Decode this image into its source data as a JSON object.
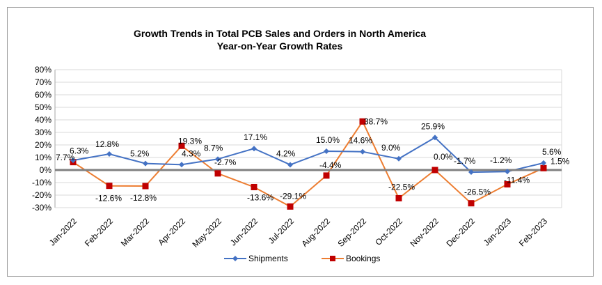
{
  "chart_data": {
    "type": "line",
    "title": "Growth Trends in Total PCB Sales and Orders in North America",
    "subtitle": "Year-on-Year Growth Rates",
    "xlabel": "",
    "ylabel": "",
    "ylim": [
      -30,
      80
    ],
    "yticks": [
      80,
      70,
      60,
      50,
      40,
      30,
      20,
      10,
      0,
      -10,
      -20,
      -30
    ],
    "ytick_labels": [
      "80%",
      "70%",
      "60%",
      "50%",
      "40%",
      "30%",
      "20%",
      "10%",
      "0%",
      "-10%",
      "-20%",
      "-30%"
    ],
    "categories": [
      "Jan-2022",
      "Feb-2022",
      "Mar-2022",
      "Apr-2022",
      "May-2022",
      "Jun-2022",
      "Jul-2022",
      "Aug-2022",
      "Sep-2022",
      "Oct-2022",
      "Nov-2022",
      "Dec-2022",
      "Jan-2023",
      "Feb-2023"
    ],
    "grid": true,
    "legend_position": "bottom",
    "series": [
      {
        "name": "Shipments",
        "color": "#4472c4",
        "marker": "diamond",
        "values": [
          7.7,
          12.8,
          5.2,
          4.3,
          8.7,
          17.1,
          4.2,
          15.0,
          14.6,
          9.0,
          25.9,
          -1.7,
          -1.2,
          5.6
        ],
        "labels": [
          "7.7%",
          "12.8%",
          "5.2%",
          "4.3%",
          "8.7%",
          "17.1%",
          "4.2%",
          "15.0%",
          "14.6%",
          "9.0%",
          "25.9%",
          "-1.7%",
          "-1.2%",
          "5.6%"
        ]
      },
      {
        "name": "Bookings",
        "color": "#ed7d31",
        "marker_color": "#c00000",
        "marker": "square",
        "values": [
          6.3,
          -12.6,
          -12.8,
          19.3,
          -2.7,
          -13.6,
          -29.1,
          -4.4,
          38.7,
          -22.5,
          0.0,
          -26.5,
          -11.4,
          1.5
        ],
        "labels": [
          "6.3%",
          "-12.6%",
          "-12.8%",
          "19.3%",
          "-2.7%",
          "-13.6%",
          "-29.1%",
          "-4.4%",
          "38.7%",
          "-22.5%",
          "0.0%",
          "-26.5%",
          "-11.4%",
          "1.5%"
        ]
      }
    ]
  }
}
